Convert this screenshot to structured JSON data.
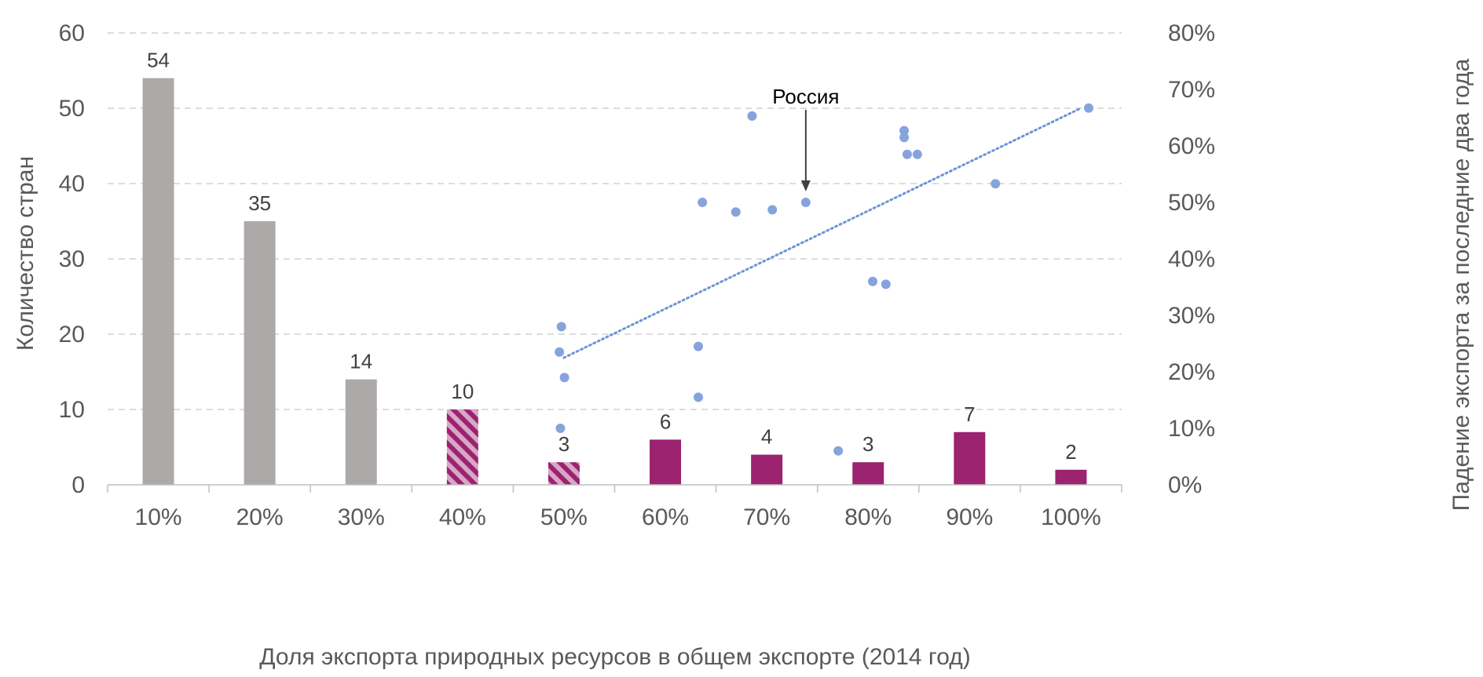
{
  "chart_data": {
    "type": "bar",
    "xlabel": "Доля экспорта природных ресурсов в общем экспорте (2014 год)",
    "ylabel": "Количество стран",
    "y2label": "Падение экспорта за последние два года",
    "categories": [
      "10%",
      "20%",
      "30%",
      "40%",
      "50%",
      "60%",
      "70%",
      "80%",
      "90%",
      "100%"
    ],
    "values": [
      54,
      35,
      14,
      10,
      3,
      6,
      4,
      3,
      7,
      2
    ],
    "bar_styles": [
      "gray",
      "gray",
      "gray",
      "hatched",
      "hatched",
      "purple",
      "purple",
      "purple",
      "purple",
      "purple"
    ],
    "ylim": [
      0,
      60
    ],
    "yticks": [
      0,
      10,
      20,
      30,
      40,
      50,
      60
    ],
    "y2lim": [
      0,
      0.8
    ],
    "y2ticks": [
      "0%",
      "10%",
      "20%",
      "30%",
      "40%",
      "50%",
      "60%",
      "70%",
      "80%"
    ],
    "grid": true,
    "colors": {
      "gray": "#ADA9A9",
      "purple": "#9B2370",
      "hatch_light": "#D8A6C6",
      "scatter": "#87A3DC",
      "trend": "#6E94D6",
      "grid": "#D0D0D0"
    },
    "scatter": {
      "x": [
        0.4955,
        0.4975,
        0.5005,
        0.4965,
        0.6325,
        0.6325,
        0.6365,
        0.6855,
        0.6695,
        0.7055,
        0.7385,
        0.7705,
        0.8045,
        0.8175,
        0.8355,
        0.8355,
        0.8385,
        0.8485,
        0.9255,
        1.0175
      ],
      "y": [
        0.235,
        0.28,
        0.19,
        0.1,
        0.245,
        0.155,
        0.5,
        0.653,
        0.483,
        0.487,
        0.5,
        0.06,
        0.36,
        0.355,
        0.627,
        0.615,
        0.585,
        0.585,
        0.533,
        0.667
      ]
    },
    "trendline": {
      "style": "dotted",
      "x": [
        0.5,
        1.01
      ],
      "y": [
        0.225,
        0.667
      ]
    },
    "annotation": {
      "text": "Россия",
      "x": 0.7385,
      "y": 0.5
    }
  }
}
